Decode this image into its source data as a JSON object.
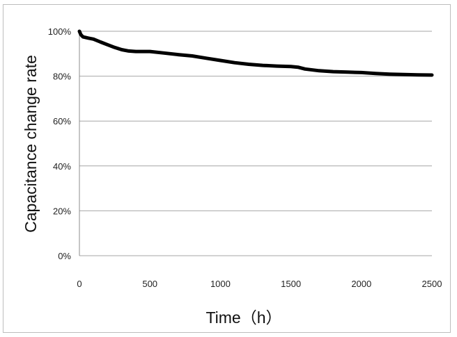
{
  "chart_data": {
    "type": "line",
    "title": "",
    "xlabel": "Time（h）",
    "ylabel": "Capacitance change rate",
    "xlim": [
      0,
      2500
    ],
    "ylim": [
      0,
      100
    ],
    "x_ticks": [
      "0",
      "500",
      "1000",
      "1500",
      "2000",
      "2500"
    ],
    "y_ticks": [
      "0%",
      "20%",
      "40%",
      "60%",
      "80%",
      "100%"
    ],
    "x_tick_values": [
      0,
      500,
      1000,
      1500,
      2000,
      2500
    ],
    "y_tick_values": [
      0,
      20,
      40,
      60,
      80,
      100
    ],
    "grid": "horizontal",
    "legend": "none",
    "line_color": "#000000",
    "grid_color": "#a6a6a6",
    "series": [
      {
        "x": [
          0,
          10,
          25,
          60,
          100,
          150,
          200,
          250,
          300,
          350,
          400,
          450,
          500,
          600,
          700,
          800,
          900,
          1000,
          1100,
          1200,
          1300,
          1400,
          1500,
          1550,
          1600,
          1700,
          1800,
          1900,
          2000,
          2100,
          2200,
          2300,
          2400,
          2500
        ],
        "values": [
          100,
          98.5,
          97.5,
          97,
          96.5,
          95.2,
          94,
          92.8,
          91.8,
          91.2,
          91,
          91,
          91,
          90.3,
          89.6,
          89,
          88,
          87,
          86,
          85.3,
          84.8,
          84.5,
          84.3,
          84,
          83.2,
          82.4,
          82,
          81.8,
          81.6,
          81.2,
          80.9,
          80.7,
          80.6,
          80.5
        ]
      }
    ]
  }
}
